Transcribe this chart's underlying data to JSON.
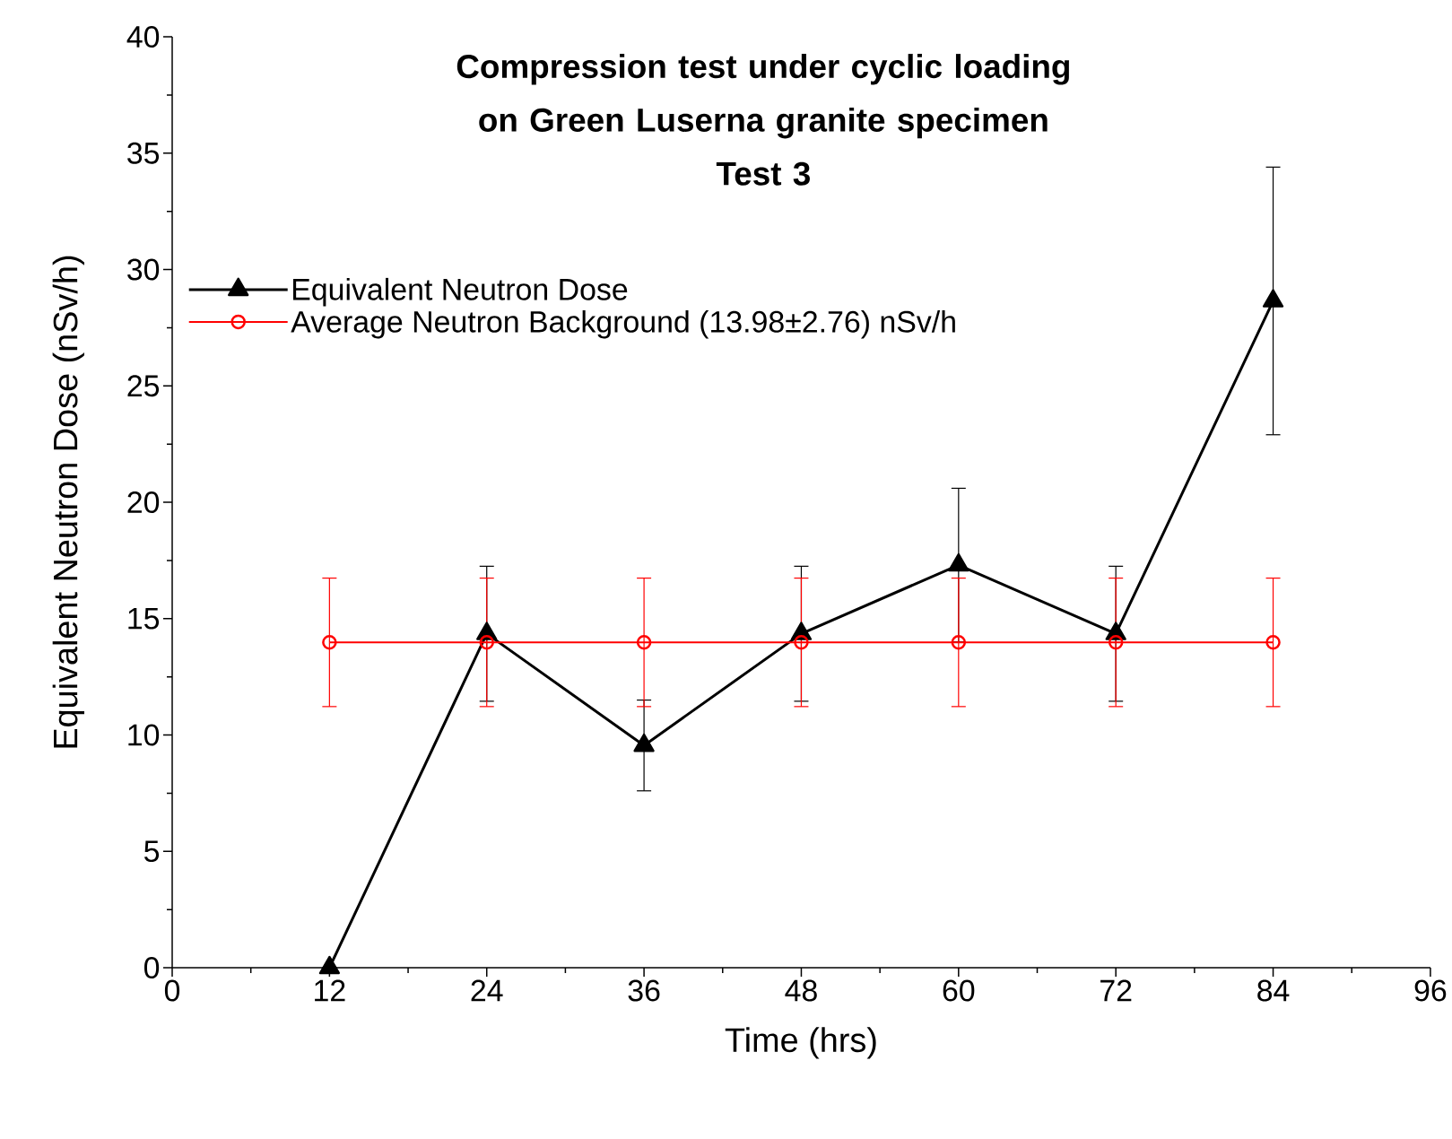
{
  "chart_data": {
    "type": "line",
    "title": "Compression test under cyclic loading on Green Luserna granite specimen",
    "subtitle": "Test 3",
    "xlabel": "Time (hrs)",
    "ylabel": "Equivalent Neutron Dose (nSv/h)",
    "x": [
      12,
      24,
      36,
      48,
      60,
      72,
      84
    ],
    "series": [
      {
        "name": "Equivalent Neutron Dose",
        "color": "#000000",
        "marker": "triangle",
        "values": [
          0,
          14.35,
          9.55,
          14.35,
          17.3,
          14.35,
          28.65
        ],
        "errors": [
          null,
          2.9,
          1.95,
          2.9,
          3.3,
          2.9,
          5.75
        ]
      },
      {
        "name": "Average Neutron Background (13.98±2.76) nSv/h",
        "color": "#ff0000",
        "marker": "circle",
        "values": [
          13.98,
          13.98,
          13.98,
          13.98,
          13.98,
          13.98,
          13.98
        ],
        "errors": [
          2.76,
          2.76,
          2.76,
          2.76,
          2.76,
          2.76,
          2.76
        ]
      }
    ],
    "xlim": [
      0,
      96
    ],
    "ylim": [
      0,
      40
    ],
    "xticks": [
      0,
      12,
      24,
      36,
      48,
      60,
      72,
      84,
      96
    ],
    "yticks": [
      0,
      5,
      10,
      15,
      20,
      25,
      30,
      35,
      40
    ],
    "grid": false,
    "legend": "top left"
  }
}
